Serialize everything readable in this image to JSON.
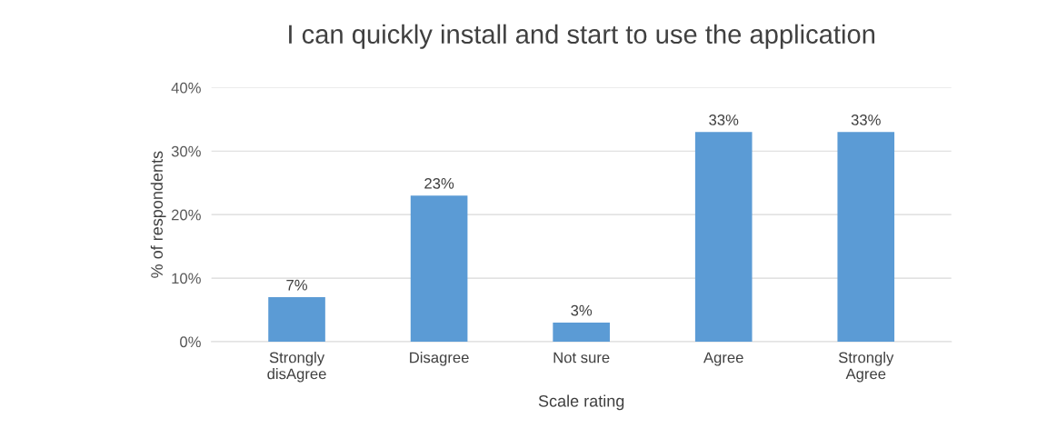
{
  "chart_data": {
    "type": "bar",
    "title": "I can quickly install and start to use the application",
    "xlabel": "Scale rating",
    "ylabel": "% of respondents",
    "categories": [
      "Strongly\ndisAgree",
      "Disagree",
      "Not sure",
      "Agree",
      "Strongly\nAgree"
    ],
    "values": [
      7,
      23,
      3,
      33,
      33
    ],
    "value_labels": [
      "7%",
      "23%",
      "3%",
      "33%",
      "33%"
    ],
    "color": "#5b9bd5",
    "ylim": [
      0,
      40
    ],
    "yticks": [
      {
        "value": 0,
        "label": "0%"
      },
      {
        "value": 10,
        "label": "10%"
      },
      {
        "value": 20,
        "label": "20%"
      },
      {
        "value": 30,
        "label": "30%"
      },
      {
        "value": 40,
        "label": "40%"
      }
    ],
    "grid": "y"
  }
}
